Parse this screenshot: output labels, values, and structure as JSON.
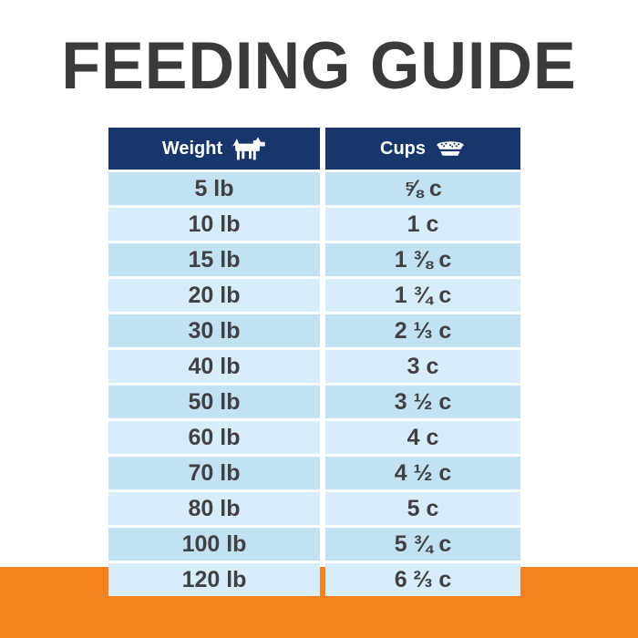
{
  "title": "FEEDING GUIDE",
  "colors": {
    "header_navy": "#17366b",
    "row_shade_a": "#c2e2f4",
    "row_shade_b": "#d7edfb",
    "orange_band": "#f5821f",
    "title_text": "#3a3a3c",
    "row_text": "#414042"
  },
  "table": {
    "headers": [
      {
        "label": "Weight",
        "icon": "dog-icon"
      },
      {
        "label": "Cups",
        "icon": "bowl-icon"
      }
    ],
    "rows": [
      {
        "weight": "5 lb",
        "cups": "⅝ c"
      },
      {
        "weight": "10 lb",
        "cups": "1 c"
      },
      {
        "weight": "15 lb",
        "cups": "1 ⅜ c"
      },
      {
        "weight": "20 lb",
        "cups": "1 ¾ c"
      },
      {
        "weight": "30 lb",
        "cups": "2 ⅓ c"
      },
      {
        "weight": "40 lb",
        "cups": "3 c"
      },
      {
        "weight": "50 lb",
        "cups": "3 ½ c"
      },
      {
        "weight": "60 lb",
        "cups": "4 c"
      },
      {
        "weight": "70 lb",
        "cups": "4 ½ c"
      },
      {
        "weight": "80 lb",
        "cups": "5 c"
      },
      {
        "weight": "100 lb",
        "cups": "5 ¾ c"
      },
      {
        "weight": "120 lb",
        "cups": "6 ⅔ c"
      }
    ]
  },
  "chart_data": {
    "type": "table",
    "title": "FEEDING GUIDE",
    "columns": [
      "Weight",
      "Cups"
    ],
    "rows": [
      [
        "5 lb",
        "⅝ c"
      ],
      [
        "10 lb",
        "1 c"
      ],
      [
        "15 lb",
        "1 ⅜ c"
      ],
      [
        "20 lb",
        "1 ¾ c"
      ],
      [
        "30 lb",
        "2 ⅓ c"
      ],
      [
        "40 lb",
        "3 c"
      ],
      [
        "50 lb",
        "3 ½ c"
      ],
      [
        "60 lb",
        "4 c"
      ],
      [
        "70 lb",
        "4 ½ c"
      ],
      [
        "80 lb",
        "5 c"
      ],
      [
        "100 lb",
        "5 ¾ c"
      ],
      [
        "120 lb",
        "6 ⅔ c"
      ]
    ]
  }
}
